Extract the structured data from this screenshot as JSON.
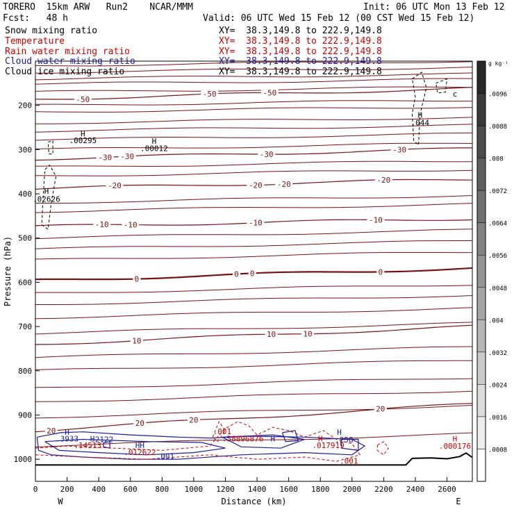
{
  "header": {
    "model": "TORERO  15km ARW   Run2    NCAR/MMM",
    "init": "Init: 06 UTC Mon 13 Feb 12",
    "fcst": "Fcst:   48 h",
    "valid": "Valid: 06 UTC Wed 15 Feb 12 (00 CST Wed 15 Feb 12)"
  },
  "legend": [
    {
      "label": "Snow mixing ratio",
      "xy": "XY=  38.3,149.8 to 222.9,149.8",
      "color": "#000000"
    },
    {
      "label": "Temperature",
      "xy": "XY=  38.3,149.8 to 222.9,149.8",
      "color": "#cc0000"
    },
    {
      "label": "Rain water mixing ratio",
      "xy": "XY=  38.3,149.8 to 222.9,149.8",
      "color": "#cc0000"
    },
    {
      "label": "Cloud water mixing ratio",
      "xy": "XY=  38.3,149.8 to 222.9,149.8",
      "color": "#1a1aa0"
    },
    {
      "label": "Cloud ice mixing ratio",
      "xy": "XY=  38.3,149.8 to 222.9,149.8",
      "color": "#000000"
    }
  ],
  "chart_data": {
    "type": "cross-section contour",
    "xlabel": "Distance (km)",
    "ylabel": "Pressure (hPa)",
    "xlim": [
      0,
      2760
    ],
    "ylim": [
      1050,
      100
    ],
    "x_ticks": [
      0,
      200,
      400,
      600,
      800,
      1000,
      1200,
      1400,
      1600,
      1800,
      2000,
      2200,
      2400,
      2600
    ],
    "y_ticks": [
      200,
      300,
      400,
      500,
      600,
      700,
      800,
      900,
      1000
    ],
    "west_label": "W",
    "east_label": "E",
    "colorbar": {
      "units": "g kg⁻¹",
      "labels": [
        ".0096",
        ".0088",
        ".008",
        ".0072",
        ".0064",
        ".0056",
        ".0048",
        ".004",
        ".0032",
        ".0024",
        ".0016",
        ".0008"
      ]
    },
    "isotherms": [
      {
        "temp": -50,
        "p_west": 186,
        "p_east": 162,
        "labels": [
          {
            "x": 300,
            "text": "-50"
          },
          {
            "x": 1100,
            "text": "-50"
          },
          {
            "x": 1480,
            "text": "-50"
          }
        ]
      },
      {
        "temp": -30,
        "p_west": 321,
        "p_east": 298,
        "labels": [
          {
            "x": 440,
            "text": "-30"
          },
          {
            "x": 580,
            "text": "-30"
          },
          {
            "x": 1460,
            "text": "-30"
          },
          {
            "x": 2300,
            "text": "-30"
          }
        ]
      },
      {
        "temp": -20,
        "p_west": 388,
        "p_east": 367,
        "labels": [
          {
            "x": 500,
            "text": "-20"
          },
          {
            "x": 1390,
            "text": "-20"
          },
          {
            "x": 1570,
            "text": "-20"
          },
          {
            "x": 2200,
            "text": "-20"
          }
        ]
      },
      {
        "temp": -10,
        "p_west": 474,
        "p_east": 456,
        "labels": [
          {
            "x": 420,
            "text": "-10"
          },
          {
            "x": 600,
            "text": "-10"
          },
          {
            "x": 1390,
            "text": "-10"
          },
          {
            "x": 2150,
            "text": "-10"
          }
        ]
      },
      {
        "temp": 0,
        "p_west": 596,
        "p_east": 568,
        "labels": [
          {
            "x": 640,
            "text": "0"
          },
          {
            "x": 1270,
            "text": "0"
          },
          {
            "x": 1370,
            "text": "0"
          },
          {
            "x": 2180,
            "text": "0"
          }
        ]
      },
      {
        "temp": 10,
        "p_west": 740,
        "p_east": 700,
        "labels": [
          {
            "x": 640,
            "text": "10"
          },
          {
            "x": 1490,
            "text": "10"
          },
          {
            "x": 1720,
            "text": "10"
          }
        ]
      },
      {
        "temp": 20,
        "p_west": 935,
        "p_east": 875,
        "labels": [
          {
            "x": 100,
            "text": "20"
          },
          {
            "x": 660,
            "text": "20"
          },
          {
            "x": 1000,
            "text": "20"
          },
          {
            "x": 2180,
            "text": "20"
          }
        ]
      }
    ],
    "annotations": [
      {
        "x": 300,
        "p": 270,
        "text": "H"
      },
      {
        "x": 300,
        "p": 285,
        "text": ".00295",
        "color": "#000000"
      },
      {
        "x": 750,
        "p": 287,
        "text": "H"
      },
      {
        "x": 750,
        "p": 303,
        "text": ".00012",
        "color": "#000000"
      },
      {
        "x": 70,
        "p": 400,
        "text": "H"
      },
      {
        "x": 70,
        "p": 418,
        "text": ".02626",
        "color": "#000000"
      },
      {
        "x": 2430,
        "p": 228,
        "text": "H"
      },
      {
        "x": 2430,
        "p": 245,
        "text": ".044",
        "color": "#000000"
      },
      {
        "x": 2650,
        "p": 180,
        "text": "c",
        "color": "#000000"
      },
      {
        "x": 200,
        "p": 945,
        "text": "H",
        "color": "#1a1aa0"
      },
      {
        "x": 200,
        "p": 960,
        "text": ".3933",
        "color": "#1a1aa0"
      },
      {
        "x": 360,
        "p": 960,
        "text": "H",
        "color": "#1a1aa0"
      },
      {
        "x": 420,
        "p": 961,
        "text": ".2122",
        "color": "#1a1aa0"
      },
      {
        "x": 330,
        "p": 975,
        "text": ".14513",
        "color": "#cc0000"
      },
      {
        "x": 660,
        "p": 975,
        "text": "HH",
        "color": "#1a1aa0"
      },
      {
        "x": 660,
        "p": 990,
        "text": ".012622",
        "color": "#cc0000"
      },
      {
        "x": 820,
        "p": 1000,
        "text": ".001",
        "color": "#1a1aa0"
      },
      {
        "x": 1180,
        "p": 943,
        "text": ".001",
        "color": "#cc0000"
      },
      {
        "x": 1310,
        "p": 960,
        "text": ".58896876",
        "color": "#cc0000"
      },
      {
        "x": 1500,
        "p": 960,
        "text": "H",
        "color": "#1a1aa0"
      },
      {
        "x": 1800,
        "p": 960,
        "text": "H",
        "color": "#cc0000"
      },
      {
        "x": 1850,
        "p": 975,
        "text": ".017919",
        "color": "#cc0000"
      },
      {
        "x": 1920,
        "p": 945,
        "text": "H",
        "color": "#1a1aa0"
      },
      {
        "x": 1950,
        "p": 962,
        "text": ".258",
        "color": "#1a1aa0"
      },
      {
        "x": 1980,
        "p": 1010,
        "text": ".001",
        "color": "#cc0000"
      },
      {
        "x": 2650,
        "p": 960,
        "text": "H",
        "color": "#cc0000"
      },
      {
        "x": 2650,
        "p": 976,
        "text": ".000176",
        "color": "#cc0000"
      }
    ]
  }
}
